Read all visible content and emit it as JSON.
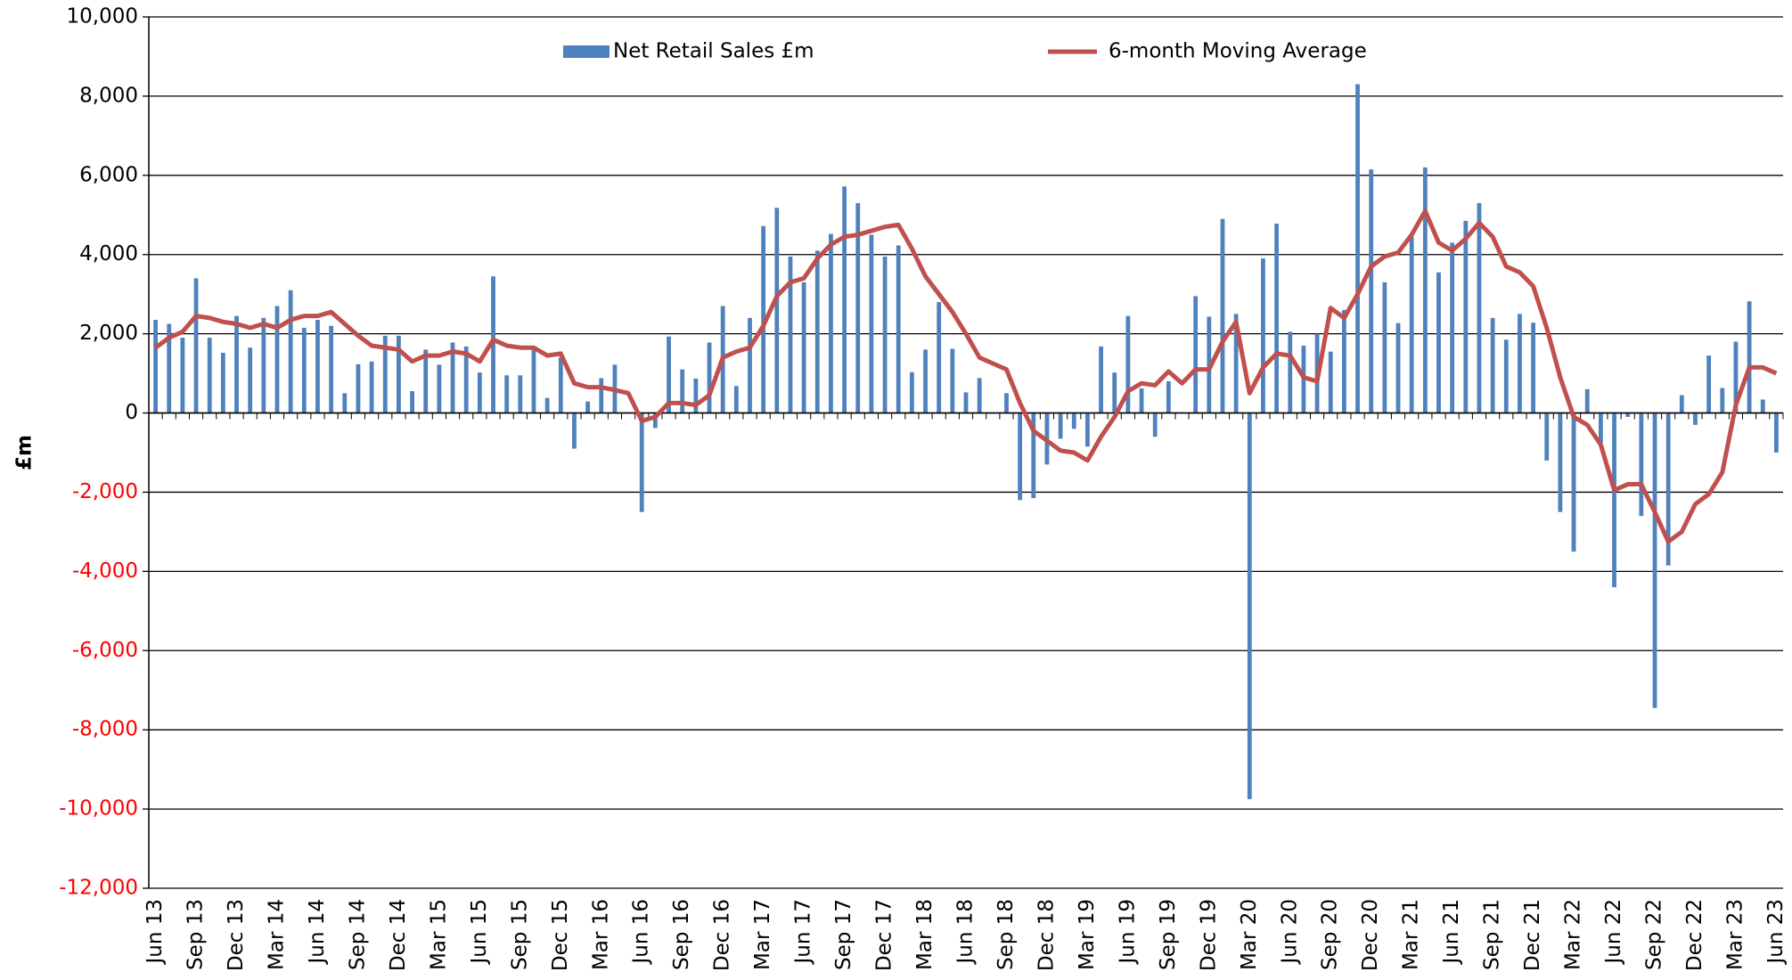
{
  "chart_data": {
    "type": "bar_line",
    "y_label": "£m",
    "categories": [
      "Jun 13",
      null,
      null,
      "Sep 13",
      null,
      null,
      "Dec 13",
      null,
      null,
      "Mar 14",
      null,
      null,
      "Jun 14",
      null,
      null,
      "Sep 14",
      null,
      null,
      "Dec 14",
      null,
      null,
      "Mar 15",
      null,
      null,
      "Jun 15",
      null,
      null,
      "Sep 15",
      null,
      null,
      "Dec 15",
      null,
      null,
      "Mar 16",
      null,
      null,
      "Jun 16",
      null,
      null,
      "Sep 16",
      null,
      null,
      "Dec 16",
      null,
      null,
      "Mar 17",
      null,
      null,
      "Jun 17",
      null,
      null,
      "Sep 17",
      null,
      null,
      "Dec 17",
      null,
      null,
      "Mar 18",
      null,
      null,
      "Jun 18",
      null,
      null,
      "Sep 18",
      null,
      null,
      "Dec 18",
      null,
      null,
      "Mar 19",
      null,
      null,
      "Jun 19",
      null,
      null,
      "Sep 19",
      null,
      null,
      "Dec 19",
      null,
      null,
      "Mar 20",
      null,
      null,
      "Jun 20",
      null,
      null,
      "Sep 20",
      null,
      null,
      "Dec 20",
      null,
      null,
      "Mar 21",
      null,
      null,
      "Jun 21",
      null,
      null,
      "Sep 21",
      null,
      null,
      "Dec 21",
      null,
      null,
      "Mar 22",
      null,
      null,
      "Jun 22",
      null,
      null,
      "Sep 22",
      null,
      null,
      "Dec 22",
      null,
      null,
      "Mar 23",
      null,
      null,
      "Jun 23"
    ],
    "series": [
      {
        "name": "Net Retail Sales £m",
        "type": "bar",
        "color": "#4f81bd",
        "values": [
          2350,
          2250,
          1900,
          3400,
          1900,
          1520,
          2450,
          1650,
          2400,
          2700,
          3100,
          2150,
          2350,
          2200,
          500,
          1230,
          1300,
          1950,
          1950,
          550,
          1600,
          1220,
          1780,
          1680,
          1020,
          3450,
          950,
          950,
          1600,
          380,
          1400,
          -900,
          290,
          880,
          1220,
          0,
          -2500,
          -380,
          1930,
          1100,
          870,
          1780,
          2700,
          680,
          2400,
          4720,
          5180,
          3950,
          3300,
          4100,
          4520,
          5720,
          5300,
          4500,
          3950,
          4230,
          1030,
          1600,
          2800,
          1620,
          520,
          880,
          0,
          500,
          -2200,
          -2150,
          -1300,
          -650,
          -400,
          -850,
          1680,
          1020,
          2450,
          620,
          -600,
          800,
          0,
          2950,
          2430,
          4900,
          2500,
          -9750,
          3900,
          4780,
          2050,
          1700,
          2000,
          1550,
          2600,
          8300,
          6150,
          3300,
          2270,
          4450,
          6200,
          3550,
          4300,
          4850,
          5300,
          2400,
          1850,
          2500,
          2280,
          -1200,
          -2500,
          -3500,
          600,
          -750,
          -4400,
          -100,
          -2600,
          -7450,
          -3850,
          450,
          -300,
          1450,
          630,
          1800,
          2820,
          340,
          -1000
        ]
      },
      {
        "name": "6-month Moving Average",
        "type": "line",
        "color": "#c0504d",
        "values": [
          1650,
          1900,
          2050,
          2450,
          2400,
          2300,
          2250,
          2150,
          2250,
          2150,
          2350,
          2450,
          2450,
          2550,
          2250,
          1950,
          1700,
          1650,
          1600,
          1300,
          1450,
          1450,
          1550,
          1500,
          1300,
          1850,
          1700,
          1650,
          1650,
          1450,
          1500,
          750,
          650,
          650,
          580,
          500,
          -200,
          -100,
          250,
          250,
          200,
          450,
          1400,
          1550,
          1650,
          2200,
          2950,
          3300,
          3400,
          3900,
          4250,
          4450,
          4500,
          4600,
          4700,
          4750,
          4150,
          3450,
          3000,
          2550,
          2000,
          1400,
          1250,
          1100,
          250,
          -450,
          -700,
          -950,
          -1000,
          -1200,
          -600,
          -100,
          550,
          750,
          700,
          1050,
          750,
          1100,
          1100,
          1800,
          2300,
          500,
          1150,
          1500,
          1450,
          900,
          800,
          2650,
          2400,
          3000,
          3700,
          3950,
          4050,
          4500,
          5100,
          4300,
          4100,
          4400,
          4800,
          4450,
          3700,
          3550,
          3200,
          2150,
          900,
          -100,
          -300,
          -800,
          -1950,
          -1800,
          -1800,
          -2500,
          -3250,
          -3000,
          -2300,
          -2050,
          -1500,
          200,
          1150,
          1150,
          1000
        ]
      }
    ],
    "ylim": [
      -12000,
      10000
    ],
    "yticks": [
      {
        "value": -12000,
        "label": "-12,000"
      },
      {
        "value": -10000,
        "label": "-10,000"
      },
      {
        "value": -8000,
        "label": "-8,000"
      },
      {
        "value": -6000,
        "label": "-6,000"
      },
      {
        "value": -4000,
        "label": "-4,000"
      },
      {
        "value": -2000,
        "label": "-2,000"
      },
      0,
      {
        "value": 2000,
        "label": "2,000"
      },
      {
        "value": 4000,
        "label": "4,000"
      },
      {
        "value": 6000,
        "label": "6,000"
      },
      {
        "value": 8000,
        "label": "8,000"
      },
      {
        "value": 10000,
        "label": "10,000"
      }
    ],
    "grid": true,
    "grid_color": "#000000",
    "tick_label_color": "#000000",
    "negative_tick_label_color": "#ff0000",
    "legend": "top"
  }
}
